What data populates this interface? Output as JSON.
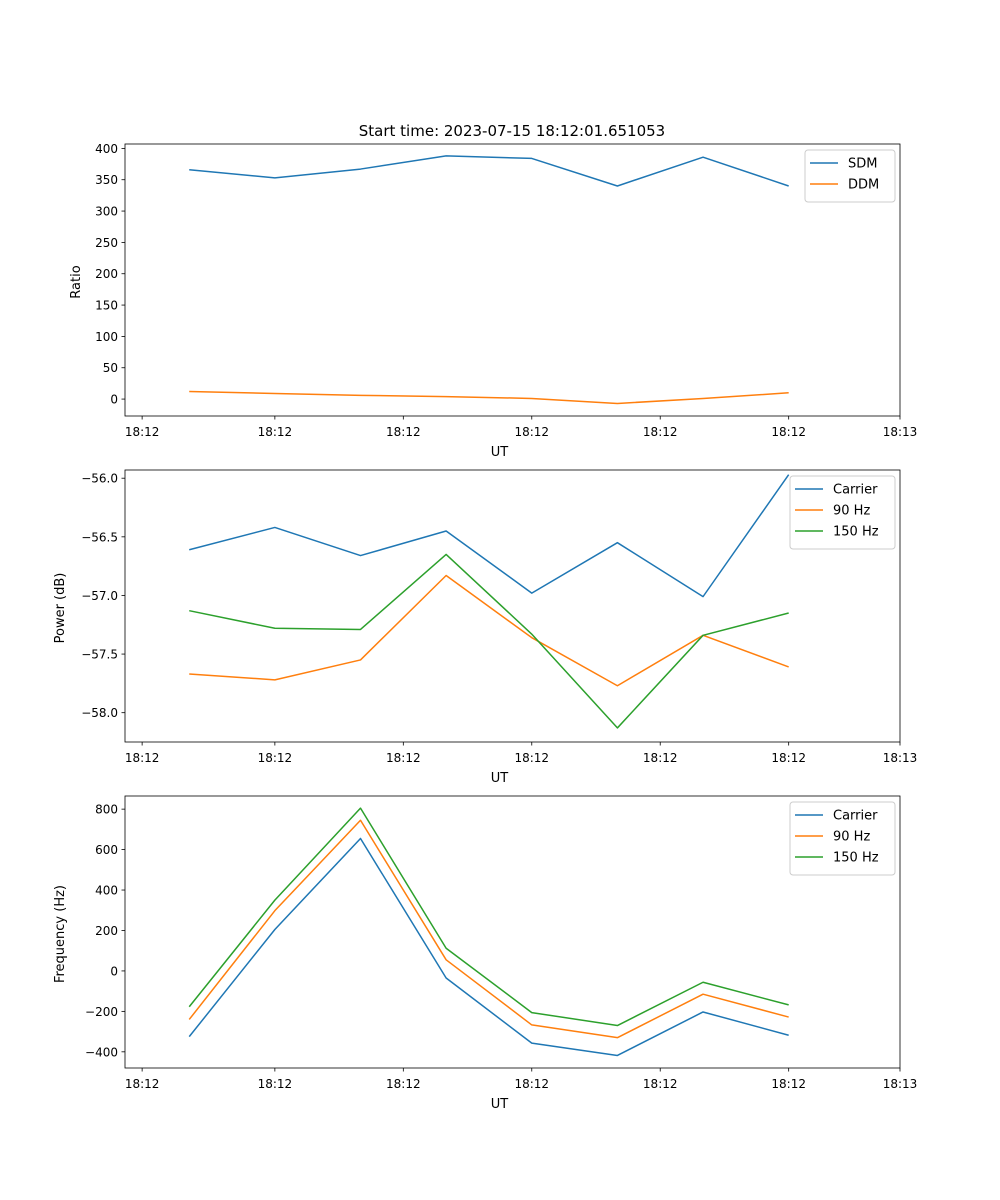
{
  "figure_title": "Start time: 2023-07-15 18:12:01.651053",
  "colors": {
    "blue": "#1f77b4",
    "orange": "#ff7f0e",
    "green": "#2ca02c"
  },
  "chart_data": [
    {
      "type": "line",
      "title": "Start time: 2023-07-15 18:12:01.651053",
      "xlabel": "UT",
      "ylabel": "Ratio",
      "x": [
        1,
        2,
        3,
        4,
        5,
        6,
        7,
        8
      ],
      "xlim": [
        0.25,
        9.3
      ],
      "x_ticks": [
        0.45,
        2,
        3.5,
        5,
        6.5,
        8,
        9.3
      ],
      "x_tick_labels": [
        "18:12",
        "18:12",
        "18:12",
        "18:12",
        "18:12",
        "18:12",
        "18:13"
      ],
      "ylim": [
        -27,
        407
      ],
      "y_ticks": [
        0,
        50,
        100,
        150,
        200,
        250,
        300,
        350,
        400
      ],
      "y_tick_labels": [
        "0",
        "50",
        "100",
        "150",
        "200",
        "250",
        "300",
        "350",
        "400"
      ],
      "legend_position": "top-right",
      "series": [
        {
          "name": "SDM",
          "color": "#1f77b4",
          "values": [
            366,
            353,
            367,
            388,
            384,
            340,
            386,
            340
          ]
        },
        {
          "name": "DDM",
          "color": "#ff7f0e",
          "values": [
            12,
            9,
            6,
            4,
            1,
            -7,
            1,
            10
          ]
        }
      ]
    },
    {
      "type": "line",
      "title": "",
      "xlabel": "UT",
      "ylabel": "Power (dB)",
      "x": [
        1,
        2,
        3,
        4,
        5,
        6,
        7,
        8
      ],
      "xlim": [
        0.25,
        9.3
      ],
      "x_ticks": [
        0.45,
        2,
        3.5,
        5,
        6.5,
        8,
        9.3
      ],
      "x_tick_labels": [
        "18:12",
        "18:12",
        "18:12",
        "18:12",
        "18:12",
        "18:12",
        "18:13"
      ],
      "ylim": [
        -58.25,
        -55.93
      ],
      "y_ticks": [
        -58.0,
        -57.5,
        -57.0,
        -56.5,
        -56.0
      ],
      "y_tick_labels": [
        "−58.0",
        "−57.5",
        "−57.0",
        "−56.5",
        "−56.0"
      ],
      "legend_position": "top-right",
      "series": [
        {
          "name": "Carrier",
          "color": "#1f77b4",
          "values": [
            -56.61,
            -56.42,
            -56.66,
            -56.45,
            -56.98,
            -56.55,
            -57.01,
            -55.97
          ]
        },
        {
          "name": "90 Hz",
          "color": "#ff7f0e",
          "values": [
            -57.67,
            -57.72,
            -57.55,
            -56.83,
            -57.36,
            -57.77,
            -57.34,
            -57.61
          ]
        },
        {
          "name": "150 Hz",
          "color": "#2ca02c",
          "values": [
            -57.13,
            -57.28,
            -57.29,
            -56.65,
            -57.33,
            -58.13,
            -57.34,
            -57.15
          ]
        }
      ]
    },
    {
      "type": "line",
      "title": "",
      "xlabel": "UT",
      "ylabel": "Frequency (Hz)",
      "x": [
        1,
        2,
        3,
        4,
        5,
        6,
        7,
        8
      ],
      "xlim": [
        0.25,
        9.3
      ],
      "x_ticks": [
        0.45,
        2,
        3.5,
        5,
        6.5,
        8,
        9.3
      ],
      "x_tick_labels": [
        "18:12",
        "18:12",
        "18:12",
        "18:12",
        "18:12",
        "18:12",
        "18:13"
      ],
      "ylim": [
        -480,
        865
      ],
      "y_ticks": [
        -400,
        -200,
        0,
        200,
        400,
        600,
        800
      ],
      "y_tick_labels": [
        "−400",
        "−200",
        "0",
        "200",
        "400",
        "600",
        "800"
      ],
      "legend_position": "top-right",
      "series": [
        {
          "name": "Carrier",
          "color": "#1f77b4",
          "values": [
            -325,
            205,
            655,
            -35,
            -357,
            -418,
            -203,
            -318
          ]
        },
        {
          "name": "90 Hz",
          "color": "#ff7f0e",
          "values": [
            -240,
            298,
            745,
            55,
            -267,
            -330,
            -115,
            -228
          ]
        },
        {
          "name": "150 Hz",
          "color": "#2ca02c",
          "values": [
            -177,
            350,
            805,
            112,
            -206,
            -270,
            -56,
            -168
          ]
        }
      ]
    }
  ]
}
